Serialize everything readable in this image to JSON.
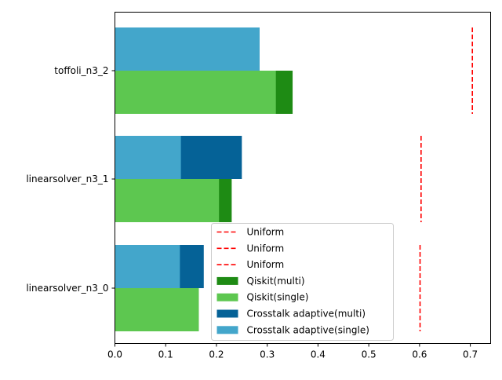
{
  "chart_data": {
    "type": "bar",
    "orientation": "horizontal",
    "categories": [
      "linearsolver_n3_0",
      "linearsolver_n3_1",
      "toffoli_n3_2"
    ],
    "xlim": [
      0,
      0.74
    ],
    "x_ticks": [
      "0.0",
      "0.1",
      "0.2",
      "0.3",
      "0.4",
      "0.5",
      "0.6",
      "0.7"
    ],
    "grid": false,
    "legend_position": "lower-center",
    "series": [
      {
        "name": "Qiskit(multi)",
        "group": "qiskit",
        "values": [
          0.165,
          0.23,
          0.35
        ],
        "color": "#1e8b14"
      },
      {
        "name": "Qiskit(single)",
        "group": "qiskit",
        "values": [
          0.165,
          0.205,
          0.317
        ],
        "color": "#5dc750"
      },
      {
        "name": "Crosstalk adaptive(multi)",
        "group": "crosstalk",
        "values": [
          0.175,
          0.25,
          0.285
        ],
        "color": "#056297"
      },
      {
        "name": "Crosstalk adaptive(single)",
        "group": "crosstalk",
        "values": [
          0.128,
          0.13,
          0.285
        ],
        "color": "#43a6cb"
      }
    ],
    "reference_lines": [
      {
        "name": "Uniform",
        "style": "dashed",
        "color": "#ff0000",
        "values": [
          0.601,
          0.603,
          0.704
        ]
      }
    ],
    "legend": [
      "Uniform",
      "Uniform",
      "Uniform",
      "Qiskit(multi)",
      "Qiskit(single)",
      "Crosstalk adaptive(multi)",
      "Crosstalk adaptive(single)"
    ]
  }
}
